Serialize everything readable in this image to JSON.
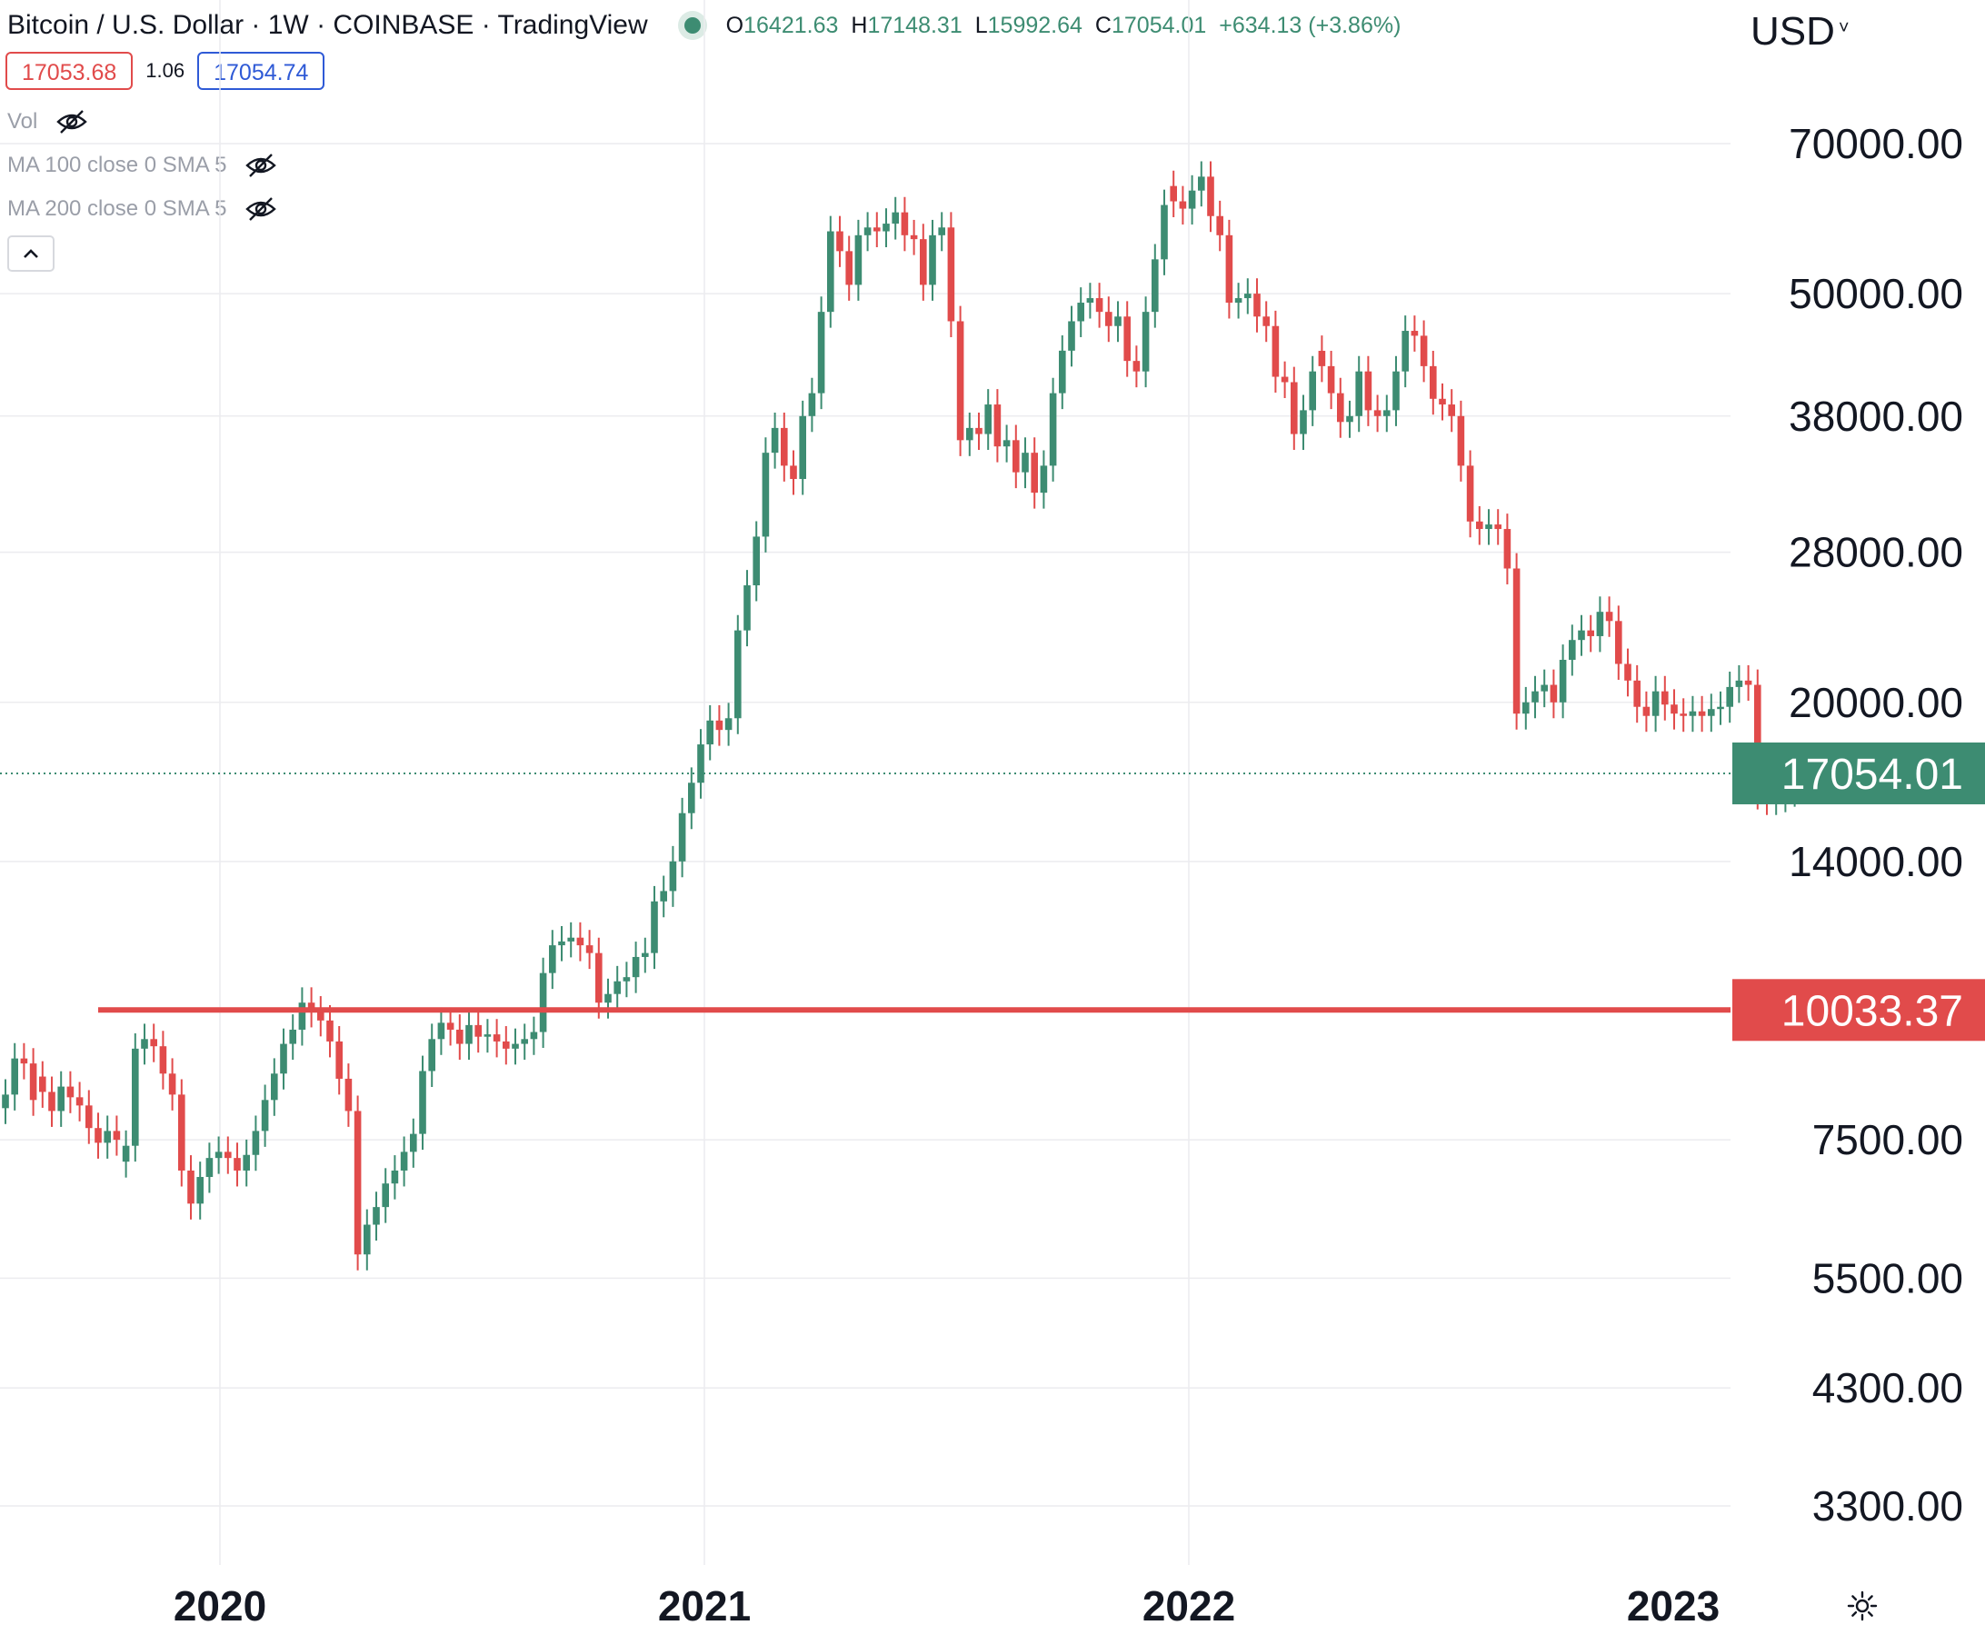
{
  "header": {
    "symbol": "Bitcoin / U.S. Dollar · 1W · COINBASE · TradingView",
    "ohlc": [
      {
        "key": "O",
        "value": "16421.63"
      },
      {
        "key": "H",
        "value": "17148.31"
      },
      {
        "key": "L",
        "value": "15992.64"
      },
      {
        "key": "C",
        "value": "17054.01"
      }
    ],
    "change": "+634.13 (+3.86%)"
  },
  "quote": {
    "sell": "17053.68",
    "spread": "1.06",
    "buy": "17054.74"
  },
  "indicators": [
    {
      "label": "Vol"
    },
    {
      "label": "MA 100 close 0 SMA 5"
    },
    {
      "label": "MA 200 close 0 SMA 5"
    }
  ],
  "currency": "USD",
  "colors": {
    "up": "#3d8c72",
    "down": "#e14b4b",
    "grid": "#ececef",
    "text": "#131722",
    "muted": "#9a9ea8"
  },
  "chart_data": {
    "type": "candlestick",
    "scale": "log",
    "y_ticks": [
      "70000.00",
      "50000.00",
      "38000.00",
      "28000.00",
      "20000.00",
      "14000.00",
      "7500.00",
      "5500.00",
      "4300.00",
      "3300.00"
    ],
    "x_ticks": [
      "2020",
      "2021",
      "2022",
      "2023"
    ],
    "last_price": {
      "label": "17054.01",
      "value": 17054.01
    },
    "support_line": {
      "label": "10033.37",
      "value": 10033.37
    },
    "candles_close_approx": [
      [
        8300,
        true
      ],
      [
        9000,
        true
      ],
      [
        8900,
        false
      ],
      [
        8200,
        false
      ],
      [
        8350,
        false
      ],
      [
        8000,
        false
      ],
      [
        8450,
        true
      ],
      [
        8250,
        false
      ],
      [
        8100,
        false
      ],
      [
        7700,
        false
      ],
      [
        7450,
        false
      ],
      [
        7650,
        true
      ],
      [
        7500,
        false
      ],
      [
        7400,
        true
      ],
      [
        9200,
        true
      ],
      [
        9400,
        true
      ],
      [
        9250,
        false
      ],
      [
        8700,
        false
      ],
      [
        8300,
        false
      ],
      [
        7000,
        false
      ],
      [
        6500,
        false
      ],
      [
        6900,
        true
      ],
      [
        7200,
        true
      ],
      [
        7300,
        true
      ],
      [
        7200,
        false
      ],
      [
        7000,
        false
      ],
      [
        7250,
        true
      ],
      [
        7650,
        true
      ],
      [
        8200,
        true
      ],
      [
        8700,
        true
      ],
      [
        9300,
        true
      ],
      [
        9600,
        true
      ],
      [
        10200,
        true
      ],
      [
        10000,
        false
      ],
      [
        9800,
        false
      ],
      [
        9350,
        false
      ],
      [
        8600,
        false
      ],
      [
        8000,
        false
      ],
      [
        5800,
        false
      ],
      [
        6200,
        true
      ],
      [
        6450,
        true
      ],
      [
        6800,
        true
      ],
      [
        7000,
        true
      ],
      [
        7300,
        true
      ],
      [
        7600,
        true
      ],
      [
        8750,
        true
      ],
      [
        9400,
        true
      ],
      [
        9750,
        true
      ],
      [
        9600,
        false
      ],
      [
        9300,
        false
      ],
      [
        9700,
        true
      ],
      [
        9450,
        false
      ],
      [
        9500,
        true
      ],
      [
        9350,
        false
      ],
      [
        9200,
        false
      ],
      [
        9300,
        true
      ],
      [
        9400,
        true
      ],
      [
        9550,
        true
      ],
      [
        10900,
        true
      ],
      [
        11600,
        true
      ],
      [
        11700,
        true
      ],
      [
        11800,
        true
      ],
      [
        11600,
        false
      ],
      [
        11400,
        false
      ],
      [
        10200,
        false
      ],
      [
        10400,
        true
      ],
      [
        10700,
        true
      ],
      [
        10800,
        true
      ],
      [
        11300,
        true
      ],
      [
        11400,
        true
      ],
      [
        12800,
        true
      ],
      [
        13100,
        true
      ],
      [
        14000,
        true
      ],
      [
        15600,
        true
      ],
      [
        16700,
        true
      ],
      [
        18200,
        true
      ],
      [
        19200,
        true
      ],
      [
        18800,
        false
      ],
      [
        19300,
        true
      ],
      [
        23500,
        true
      ],
      [
        26000,
        true
      ],
      [
        29000,
        true
      ],
      [
        35000,
        true
      ],
      [
        37000,
        true
      ],
      [
        34000,
        false
      ],
      [
        33000,
        false
      ],
      [
        38000,
        true
      ],
      [
        40000,
        true
      ],
      [
        48000,
        true
      ],
      [
        57500,
        true
      ],
      [
        55000,
        false
      ],
      [
        51000,
        false
      ],
      [
        57000,
        true
      ],
      [
        58000,
        true
      ],
      [
        57500,
        false
      ],
      [
        58500,
        true
      ],
      [
        60000,
        true
      ],
      [
        57000,
        false
      ],
      [
        56500,
        false
      ],
      [
        51000,
        false
      ],
      [
        57000,
        true
      ],
      [
        58000,
        true
      ],
      [
        47000,
        false
      ],
      [
        36000,
        false
      ],
      [
        37000,
        true
      ],
      [
        36500,
        false
      ],
      [
        39000,
        true
      ],
      [
        35500,
        false
      ],
      [
        36000,
        true
      ],
      [
        33500,
        false
      ],
      [
        35000,
        true
      ],
      [
        32000,
        false
      ],
      [
        34000,
        true
      ],
      [
        40000,
        true
      ],
      [
        44000,
        true
      ],
      [
        47000,
        true
      ],
      [
        49000,
        true
      ],
      [
        49500,
        true
      ],
      [
        48000,
        false
      ],
      [
        46500,
        false
      ],
      [
        47500,
        true
      ],
      [
        43000,
        false
      ],
      [
        42000,
        false
      ],
      [
        48000,
        true
      ],
      [
        54000,
        true
      ],
      [
        61000,
        true
      ],
      [
        61500,
        false
      ],
      [
        60500,
        false
      ],
      [
        63000,
        true
      ],
      [
        65000,
        true
      ],
      [
        59500,
        false
      ],
      [
        57000,
        false
      ],
      [
        49000,
        false
      ],
      [
        49500,
        true
      ],
      [
        50000,
        true
      ],
      [
        47500,
        false
      ],
      [
        46500,
        false
      ],
      [
        41500,
        false
      ],
      [
        41000,
        false
      ],
      [
        36500,
        false
      ],
      [
        38500,
        true
      ],
      [
        42000,
        true
      ],
      [
        42500,
        false
      ],
      [
        40000,
        false
      ],
      [
        37500,
        false
      ],
      [
        38000,
        true
      ],
      [
        42000,
        true
      ],
      [
        38500,
        false
      ],
      [
        38000,
        false
      ],
      [
        38500,
        true
      ],
      [
        42000,
        true
      ],
      [
        46000,
        true
      ],
      [
        45500,
        false
      ],
      [
        42500,
        false
      ],
      [
        39500,
        false
      ],
      [
        39000,
        false
      ],
      [
        38000,
        false
      ],
      [
        34000,
        false
      ],
      [
        30000,
        false
      ],
      [
        29500,
        false
      ],
      [
        29800,
        true
      ],
      [
        29500,
        false
      ],
      [
        27000,
        false
      ],
      [
        19500,
        false
      ],
      [
        20000,
        true
      ],
      [
        20500,
        true
      ],
      [
        20800,
        true
      ],
      [
        20000,
        false
      ],
      [
        22000,
        true
      ],
      [
        23000,
        true
      ],
      [
        23500,
        true
      ],
      [
        23200,
        false
      ],
      [
        24500,
        true
      ],
      [
        24000,
        false
      ],
      [
        21800,
        false
      ],
      [
        21000,
        false
      ],
      [
        19800,
        false
      ],
      [
        19400,
        false
      ],
      [
        20500,
        true
      ],
      [
        19900,
        false
      ],
      [
        19500,
        false
      ],
      [
        19400,
        false
      ],
      [
        19600,
        true
      ],
      [
        19400,
        false
      ],
      [
        19700,
        true
      ],
      [
        19800,
        true
      ],
      [
        20700,
        true
      ],
      [
        21000,
        true
      ],
      [
        20800,
        false
      ],
      [
        16300,
        false
      ],
      [
        16100,
        false
      ],
      [
        16200,
        true
      ],
      [
        16400,
        true
      ],
      [
        17054,
        true
      ]
    ]
  }
}
